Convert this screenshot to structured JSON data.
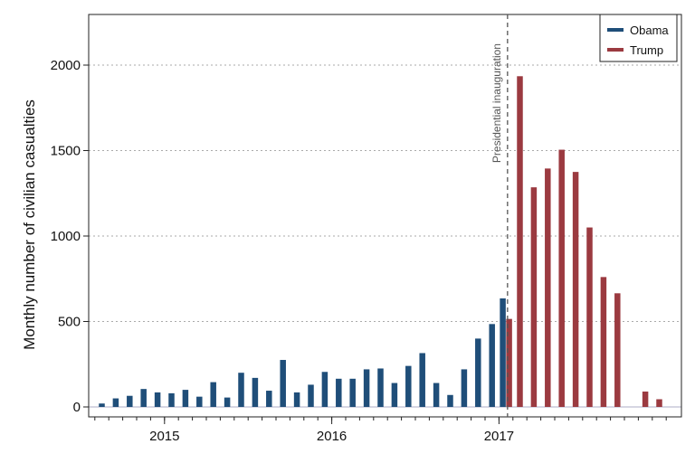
{
  "chart_data": {
    "type": "bar",
    "ylabel": "Monthly number of civilian casualties",
    "xlabel": "",
    "ylim": [
      0,
      2250
    ],
    "yticks": [
      0,
      500,
      1000,
      1500,
      2000
    ],
    "xticks": [
      {
        "label": "2015",
        "date": "2015-01"
      },
      {
        "label": "2016",
        "date": "2016-01"
      },
      {
        "label": "2017",
        "date": "2017-01"
      }
    ],
    "grid": "horizontal dotted",
    "legend_position": "top-right",
    "annotation": {
      "text": "Presidential inauguration",
      "date": "2017-01-20"
    },
    "colors": {
      "Obama": "#1f4e79",
      "Trump": "#9b3a40"
    },
    "series": [
      {
        "name": "Obama",
        "dates": [
          "2014-08",
          "2014-09",
          "2014-10",
          "2014-11",
          "2014-12",
          "2015-01",
          "2015-02",
          "2015-03",
          "2015-04",
          "2015-05",
          "2015-06",
          "2015-07",
          "2015-08",
          "2015-09",
          "2015-10",
          "2015-11",
          "2015-12",
          "2016-01",
          "2016-02",
          "2016-03",
          "2016-04",
          "2016-05",
          "2016-06",
          "2016-07",
          "2016-08",
          "2016-09",
          "2016-10",
          "2016-11",
          "2016-12",
          "2017-01"
        ],
        "values": [
          20,
          50,
          65,
          105,
          85,
          80,
          100,
          60,
          145,
          55,
          200,
          170,
          95,
          275,
          85,
          130,
          205,
          165,
          165,
          220,
          225,
          140,
          240,
          315,
          140,
          70,
          220,
          400,
          485,
          635
        ]
      },
      {
        "name": "Trump",
        "dates": [
          "2017-01",
          "2017-02",
          "2017-03",
          "2017-04",
          "2017-05",
          "2017-06",
          "2017-07",
          "2017-08",
          "2017-09",
          "2017-10",
          "2017-11",
          "2017-12"
        ],
        "values": [
          515,
          1935,
          1285,
          1395,
          1505,
          1375,
          1050,
          760,
          665,
          0,
          90,
          45
        ]
      }
    ]
  }
}
